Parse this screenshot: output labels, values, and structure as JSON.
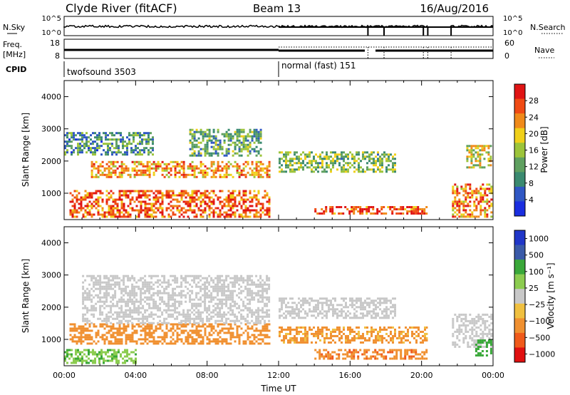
{
  "header": {
    "station": "Clyde River (fitACF)",
    "beam": "Beam 13",
    "date": "16/Aug/2016"
  },
  "noise_panel": {
    "left_label": "N.Sky",
    "right_label": "N.Search",
    "left_ticks": [
      "10^5",
      "10^0"
    ],
    "right_ticks": [
      "10^5",
      "10^0"
    ]
  },
  "freq_panel": {
    "left_label_1": "Freq.",
    "left_label_2": "[MHz]",
    "right_label": "Nave",
    "left_ticks": [
      "18",
      "8"
    ],
    "right_ticks": [
      "60",
      "0"
    ]
  },
  "cpid_panel": {
    "label": "CPID",
    "modes": [
      {
        "name": "twofsound 3503",
        "start_hour": 0
      },
      {
        "name": "normal (fast) 151",
        "start_hour": 12
      }
    ]
  },
  "colors": {
    "power_scale": [
      "#1a2ee0",
      "#2f57c4",
      "#3a8a70",
      "#5fa060",
      "#9cc43a",
      "#f0d01a",
      "#f08a1a",
      "#f04a14",
      "#e01414"
    ],
    "velocity_scale": [
      "#2036c8",
      "#3a5aa8",
      "#3aa83a",
      "#8ccc50",
      "#c8c8c8",
      "#f0c040",
      "#f09030",
      "#f05a1a",
      "#e01010"
    ]
  },
  "chart_data": [
    {
      "type": "heatmap",
      "title": "Power",
      "ylabel": "Slant Range [km]",
      "xlabel": "",
      "ylim": [
        180,
        4500
      ],
      "xlim": [
        0,
        24
      ],
      "y_ticks": [
        "1000",
        "2000",
        "3000",
        "4000"
      ],
      "colorbar_label": "Power [dB]",
      "colorbar_ticks": [
        "4",
        "8",
        "12",
        "16",
        "20",
        "24",
        "28"
      ],
      "features": [
        {
          "t0": 0.3,
          "t1": 11.5,
          "r0": 300,
          "r1": 1100,
          "level": 26
        },
        {
          "t0": 1.5,
          "t1": 11.5,
          "r0": 1500,
          "r1": 2000,
          "level": 22
        },
        {
          "t0": 0.0,
          "t1": 5.0,
          "r0": 2200,
          "r1": 2900,
          "level": 10
        },
        {
          "t0": 7.0,
          "t1": 11.0,
          "r0": 2200,
          "r1": 3000,
          "level": 12
        },
        {
          "t0": 12.0,
          "t1": 18.5,
          "r0": 1700,
          "r1": 2300,
          "level": 14
        },
        {
          "t0": 14.0,
          "t1": 20.3,
          "r0": 400,
          "r1": 600,
          "level": 27
        },
        {
          "t0": 21.7,
          "t1": 23.9,
          "r0": 300,
          "r1": 1300,
          "level": 24
        },
        {
          "t0": 22.5,
          "t1": 23.9,
          "r0": 1800,
          "r1": 2500,
          "level": 18
        }
      ]
    },
    {
      "type": "heatmap",
      "title": "Velocity",
      "ylabel": "Slant Range [km]",
      "xlabel": "Time UT",
      "ylim": [
        180,
        4500
      ],
      "xlim": [
        0,
        24
      ],
      "x_ticks": [
        "00:00",
        "04:00",
        "08:00",
        "12:00",
        "16:00",
        "20:00",
        "00:00"
      ],
      "y_ticks": [
        "1000",
        "2000",
        "3000",
        "4000"
      ],
      "colorbar_label": "Velocity [m s⁻¹]",
      "colorbar_ticks": [
        "1000",
        "500",
        "100",
        "25",
        "−25",
        "−100",
        "−500",
        "−1000"
      ],
      "features": [
        {
          "t0": 0.3,
          "t1": 11.5,
          "r0": 900,
          "r1": 1500,
          "level": -200
        },
        {
          "t0": 1.0,
          "t1": 11.5,
          "r0": 1500,
          "r1": 3000,
          "level": 0
        },
        {
          "t0": 0.0,
          "t1": 4.0,
          "r0": 300,
          "r1": 700,
          "level": 80
        },
        {
          "t0": 12.0,
          "t1": 18.5,
          "r0": 1700,
          "r1": 2300,
          "level": 0
        },
        {
          "t0": 12.0,
          "t1": 20.3,
          "r0": 900,
          "r1": 1400,
          "level": -150
        },
        {
          "t0": 14.0,
          "t1": 20.3,
          "r0": 400,
          "r1": 700,
          "level": -400
        },
        {
          "t0": 21.7,
          "t1": 23.9,
          "r0": 800,
          "r1": 1800,
          "level": 0
        },
        {
          "t0": 23.0,
          "t1": 23.9,
          "r0": 500,
          "r1": 1000,
          "level": 300
        }
      ]
    }
  ]
}
